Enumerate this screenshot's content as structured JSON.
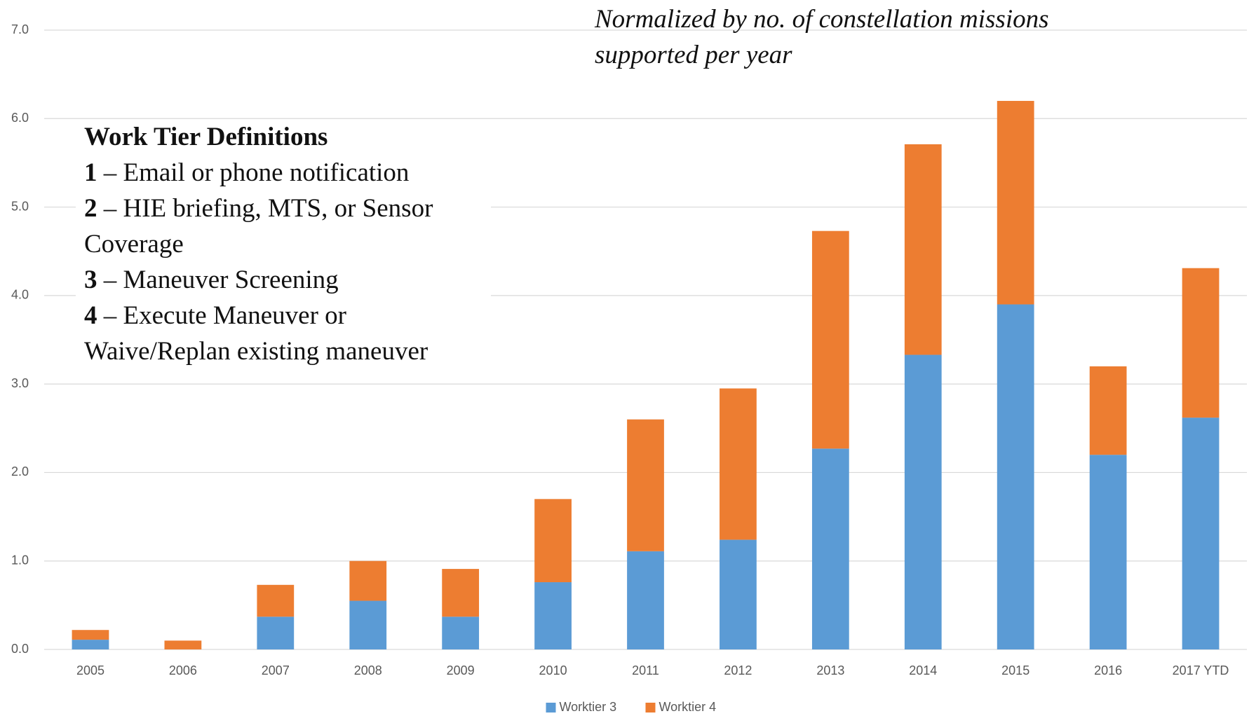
{
  "chart_data": {
    "type": "bar",
    "stacked": true,
    "subtitle": "Normalized by no. of constellation missions supported per year",
    "definitions": {
      "title": "Work Tier Definitions",
      "items": [
        {
          "number": "1",
          "text": "– Email or phone notification"
        },
        {
          "number": "2",
          "text": "– HIE briefing, MTS, or Sensor Coverage"
        },
        {
          "number": "3",
          "text": "– Maneuver Screening"
        },
        {
          "number": "4",
          "text": "– Execute Maneuver or Waive/Replan existing maneuver"
        }
      ]
    },
    "categories": [
      "2005",
      "2006",
      "2007",
      "2008",
      "2009",
      "2010",
      "2011",
      "2012",
      "2013",
      "2014",
      "2015",
      "2016",
      "2017 YTD"
    ],
    "series": [
      {
        "name": "Worktier 3",
        "color": "#5b9bd5",
        "values": [
          0.11,
          0,
          0.37,
          0.55,
          0.37,
          0.76,
          1.11,
          1.24,
          2.27,
          3.33,
          3.9,
          2.2,
          2.62
        ]
      },
      {
        "name": "Worktier 4",
        "color": "#ed7d31",
        "values": [
          0.11,
          0.1,
          0.36,
          0.45,
          0.54,
          0.94,
          1.49,
          1.71,
          2.46,
          2.38,
          2.3,
          1.0,
          1.69
        ]
      }
    ],
    "ylim": [
      0,
      7
    ],
    "yticks": [
      {
        "value": 0,
        "label": "0.0"
      },
      {
        "value": 1,
        "label": "1.0"
      },
      {
        "value": 2,
        "label": "2.0"
      },
      {
        "value": 3,
        "label": "3.0"
      },
      {
        "value": 4,
        "label": "4.0"
      },
      {
        "value": 5,
        "label": "5.0"
      },
      {
        "value": 6,
        "label": "6.0"
      },
      {
        "value": 7,
        "label": "7.0"
      }
    ],
    "grid": true,
    "legend": "bottom"
  }
}
